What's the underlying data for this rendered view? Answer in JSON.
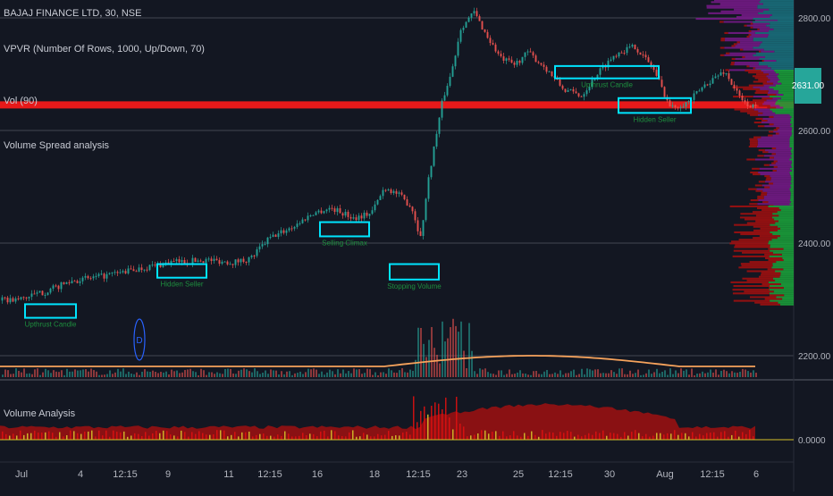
{
  "legend": {
    "line1": "BAJAJ FINANCE LTD, 30, NSE",
    "line2": "VPVR (Number Of Rows, 1000, Up/Down, 70)",
    "line3": "Vol (90)",
    "line4": "Volume Spread analysis",
    "pane2": "Volume Analysis"
  },
  "price_badge": "2631.00",
  "marker_label": "D",
  "colors": {
    "background": "#131722",
    "up": "#26a69a",
    "down": "#ef5350",
    "box": "#00e5ff",
    "redline": "#ff1a1a",
    "poc": "#1a6f7c",
    "vp_up": "#1b9e3a",
    "vp_down": "#a01010",
    "vp_purple": "#7a1a8c",
    "ma": "#f7a35c",
    "grid": "#2a2e39"
  },
  "chart_data": {
    "type": "candlestick",
    "y_ticks": [
      "2800.00",
      "2600.00",
      "2400.00",
      "2200.00"
    ],
    "pane2_tick": "0.0000",
    "x_labels": [
      "Jul",
      "4",
      "12:15",
      "9",
      "11",
      "12:15",
      "16",
      "18",
      "12:15",
      "23",
      "25",
      "12:15",
      "30",
      "Aug",
      "12:15",
      "6"
    ],
    "ylim": [
      2185,
      2815
    ],
    "resistance_line": 2645,
    "anchors": [
      [
        0,
        2328
      ],
      [
        20,
        2330
      ],
      [
        50,
        2342
      ],
      [
        80,
        2360
      ],
      [
        110,
        2366
      ],
      [
        150,
        2378
      ],
      [
        190,
        2390
      ],
      [
        230,
        2394
      ],
      [
        260,
        2390
      ],
      [
        280,
        2396
      ],
      [
        300,
        2428
      ],
      [
        330,
        2450
      ],
      [
        350,
        2470
      ],
      [
        370,
        2478
      ],
      [
        395,
        2462
      ],
      [
        415,
        2470
      ],
      [
        430,
        2512
      ],
      [
        445,
        2500
      ],
      [
        460,
        2480
      ],
      [
        470,
        2430
      ],
      [
        480,
        2535
      ],
      [
        495,
        2655
      ],
      [
        505,
        2700
      ],
      [
        515,
        2770
      ],
      [
        530,
        2795
      ],
      [
        545,
        2755
      ],
      [
        560,
        2720
      ],
      [
        575,
        2710
      ],
      [
        590,
        2730
      ],
      [
        610,
        2705
      ],
      [
        630,
        2670
      ],
      [
        650,
        2660
      ],
      [
        670,
        2700
      ],
      [
        690,
        2730
      ],
      [
        710,
        2740
      ],
      [
        730,
        2705
      ],
      [
        750,
        2640
      ],
      [
        770,
        2650
      ],
      [
        790,
        2680
      ],
      [
        810,
        2700
      ],
      [
        830,
        2650
      ],
      [
        845,
        2640
      ]
    ],
    "boxes": [
      {
        "xa": 28,
        "xb": 85,
        "lo": 2300,
        "hi": 2322,
        "label": "Upthrust Candle"
      },
      {
        "xa": 176,
        "xb": 231,
        "lo": 2365,
        "hi": 2387,
        "label": "Hidden Seller"
      },
      {
        "xa": 358,
        "xb": 413,
        "lo": 2432,
        "hi": 2455,
        "label": "Selling Climax"
      },
      {
        "xa": 436,
        "xb": 491,
        "lo": 2362,
        "hi": 2387,
        "label": "Stopping Volume"
      },
      {
        "xa": 621,
        "xb": 737,
        "lo": 2688,
        "hi": 2708,
        "label": "Upthrust Candle"
      },
      {
        "xa": 692,
        "xb": 773,
        "lo": 2632,
        "hi": 2656,
        "label": "Hidden Seller"
      }
    ],
    "volume_profile": {
      "bands": [
        {
          "lo": 2780,
          "hi": 2815,
          "wg": 1.0,
          "wp": 1.4,
          "wr": 0
        },
        {
          "lo": 2700,
          "hi": 2780,
          "wg": 1.0,
          "wp": 0.7,
          "wr": 0.1
        },
        {
          "lo": 2630,
          "hi": 2700,
          "wg": 0.6,
          "wp": 0.4,
          "wr": 0.5
        },
        {
          "lo": 2480,
          "hi": 2630,
          "wg": 0.1,
          "wp": 0.8,
          "wr": 0.2
        },
        {
          "lo": 2320,
          "hi": 2480,
          "wg": 0.6,
          "wp": 0,
          "wr": 0.9
        }
      ]
    },
    "volume_series": "random bars with spikes near the 12:15 session after 18th July"
  }
}
